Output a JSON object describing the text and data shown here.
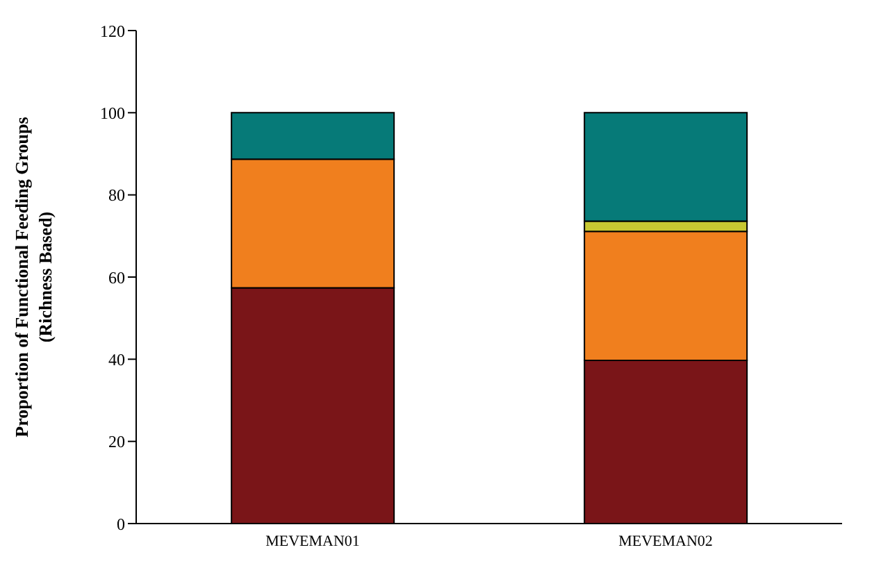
{
  "chart_data": {
    "type": "bar",
    "stacked": true,
    "ylabel": "Proportion of Functional Feeding Groups (Richness Based)",
    "categories": [
      "MEVEMAN01",
      "MEVEMAN02"
    ],
    "series": [
      {
        "color": "#7a1518",
        "values": [
          57.4,
          39.7
        ]
      },
      {
        "color": "#f07f1e",
        "values": [
          31.3,
          31.4
        ]
      },
      {
        "color": "#c8c832",
        "values": [
          0,
          2.5
        ]
      },
      {
        "color": "#067a78",
        "values": [
          11.3,
          26.4
        ]
      }
    ],
    "ylim": [
      0,
      120
    ],
    "yticks": [
      0,
      20,
      40,
      60,
      80,
      100,
      120
    ],
    "grid": false,
    "legend": false
  }
}
